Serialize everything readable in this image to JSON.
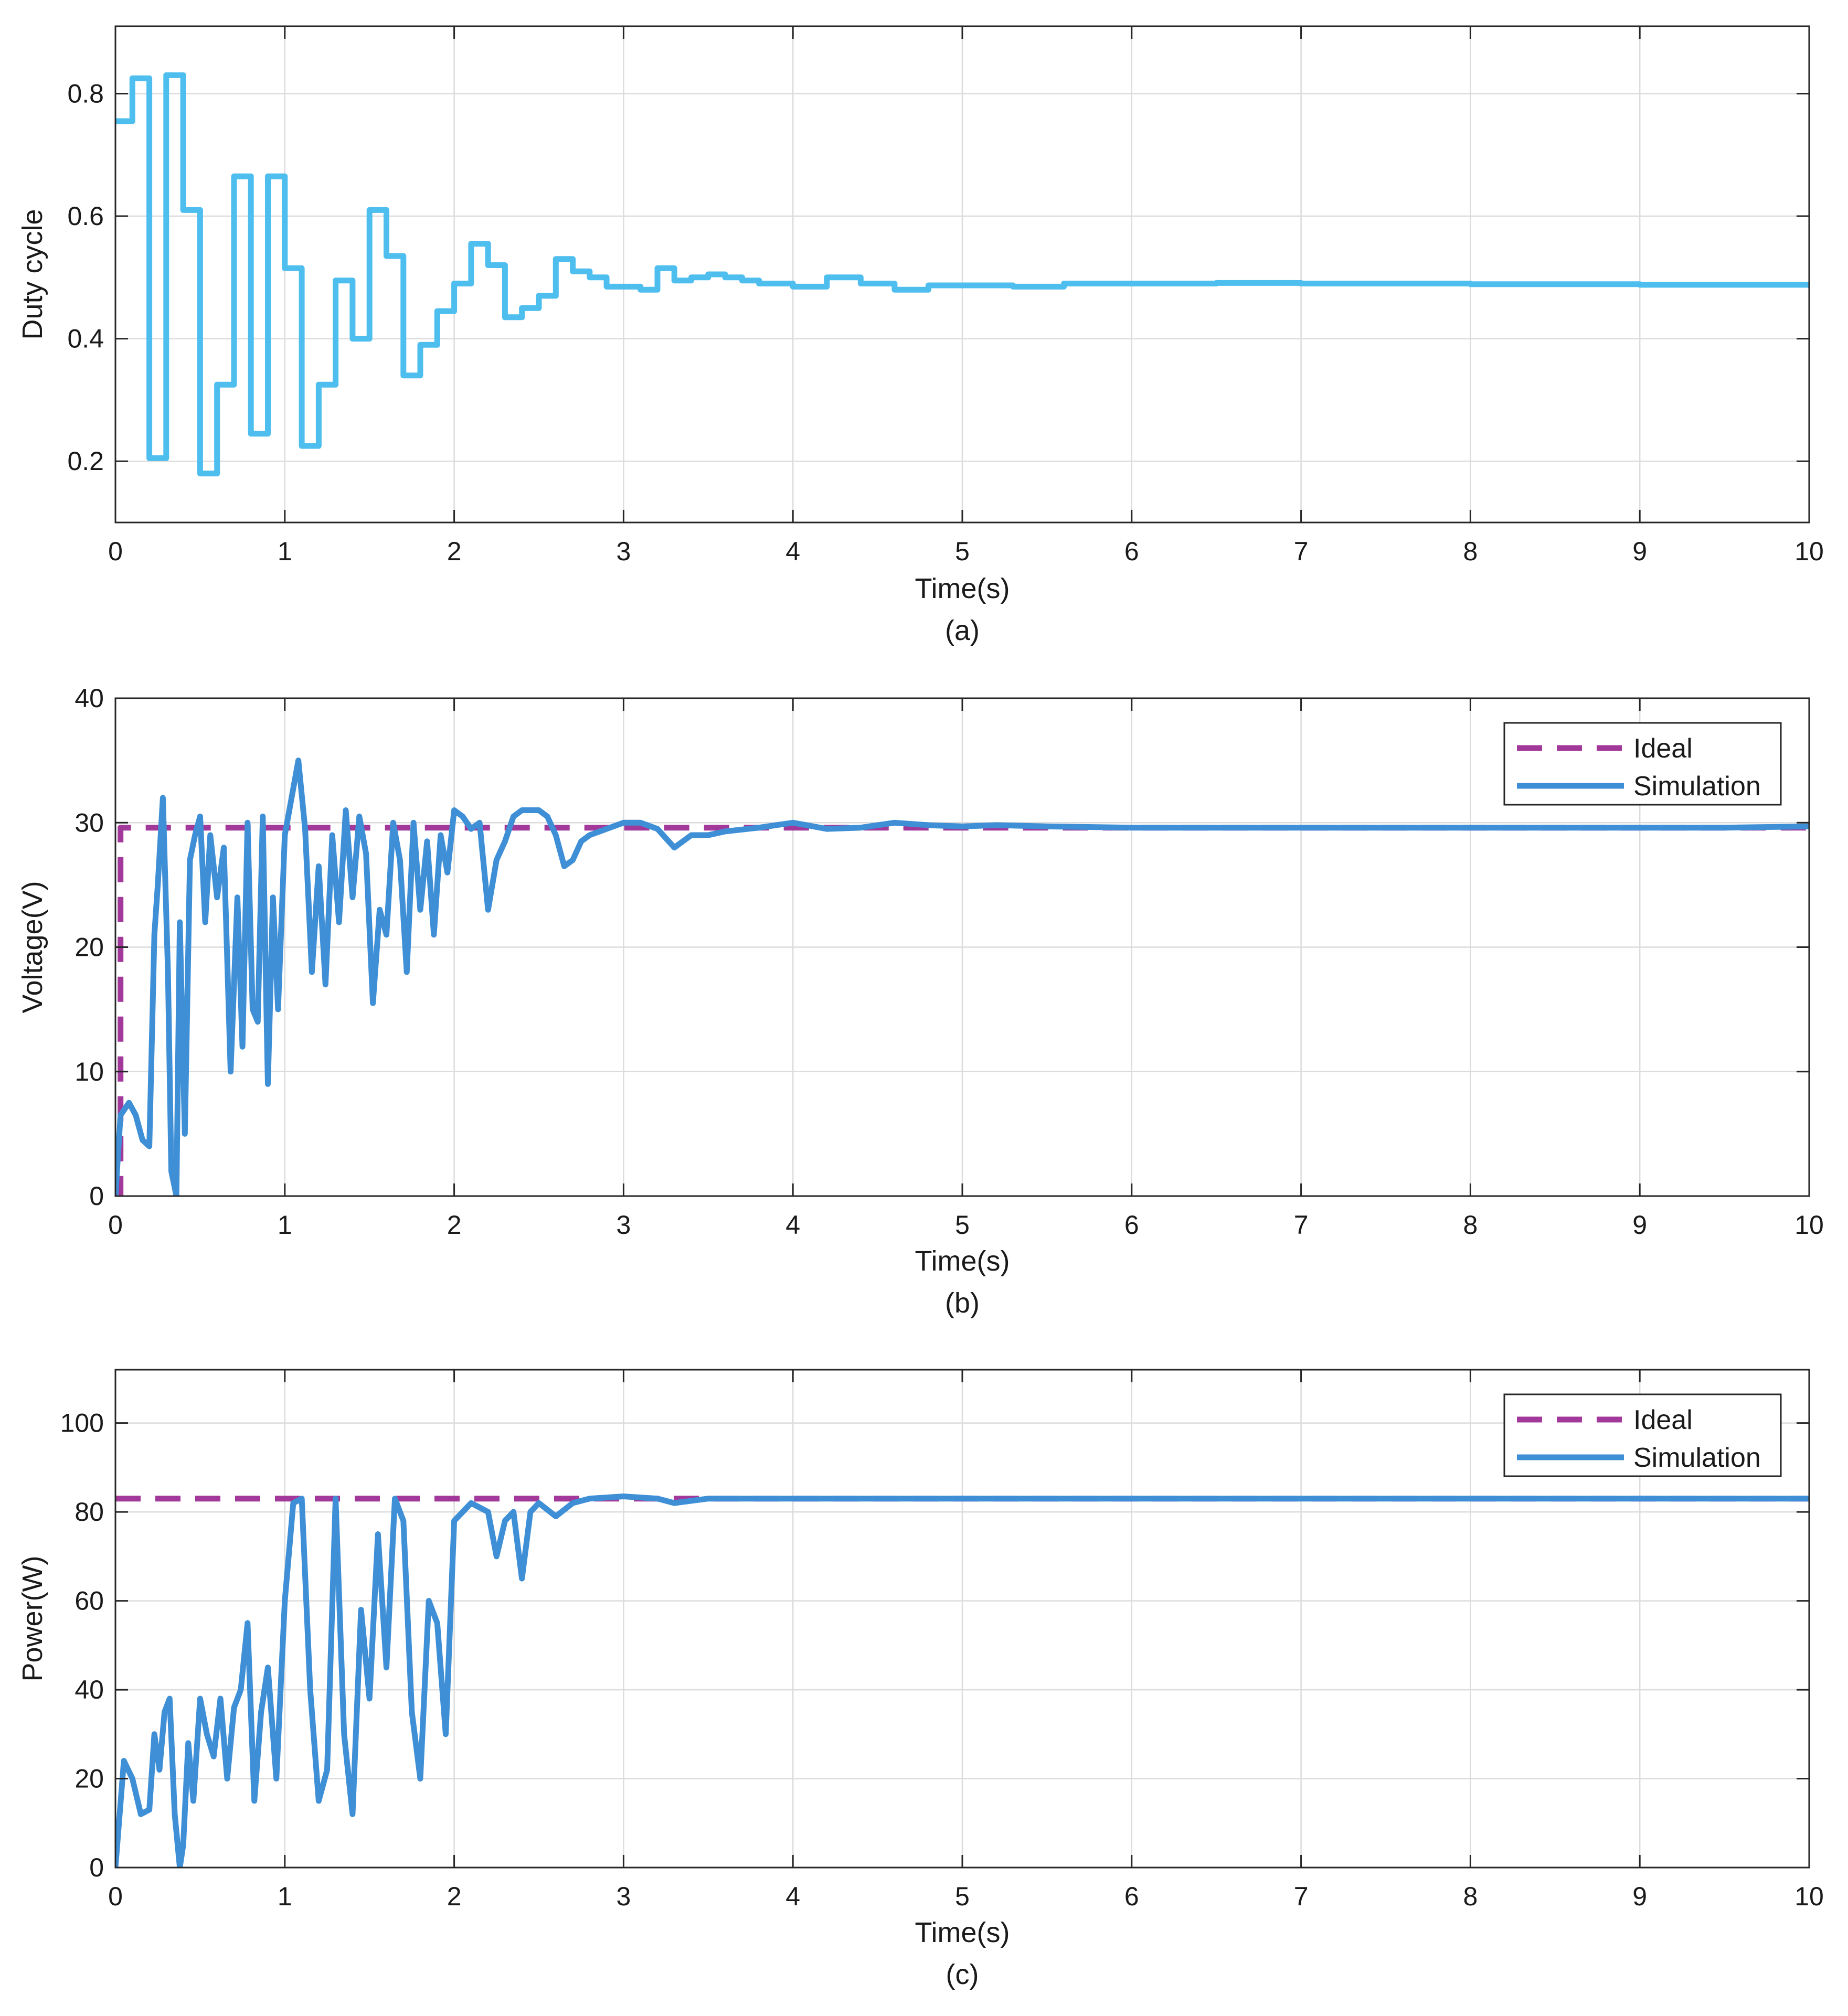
{
  "chart_data": [
    {
      "type": "line",
      "xlabel": "Time(s)",
      "ylabel": "Duty cycle",
      "caption": "(a)",
      "xlim": [
        0,
        10
      ],
      "ylim": [
        0.1,
        0.91
      ],
      "xticks": [
        0,
        1,
        2,
        3,
        4,
        5,
        6,
        7,
        8,
        9,
        10
      ],
      "yticks": [
        0.2,
        0.4,
        0.6,
        0.8
      ],
      "ytick_labels": [
        "0.2",
        "0.4",
        "0.6",
        "0.8"
      ],
      "grid": true,
      "legend": null,
      "series": [
        {
          "name": "Duty cycle",
          "color": "#4DBEEE",
          "step": true,
          "x": [
            0,
            0.1,
            0.2,
            0.3,
            0.4,
            0.5,
            0.6,
            0.7,
            0.8,
            0.9,
            1.0,
            1.1,
            1.2,
            1.3,
            1.4,
            1.5,
            1.6,
            1.7,
            1.8,
            1.9,
            2.0,
            2.1,
            2.2,
            2.3,
            2.4,
            2.5,
            2.6,
            2.7,
            2.8,
            2.9,
            3.0,
            3.1,
            3.2,
            3.3,
            3.4,
            3.5,
            3.6,
            3.7,
            3.8,
            3.9,
            4.0,
            4.2,
            4.4,
            4.6,
            4.8,
            5.0,
            5.3,
            5.6,
            6.0,
            6.5,
            7.0,
            7.5,
            8.0,
            8.5,
            9.0,
            9.5,
            10.0
          ],
          "y": [
            0.755,
            0.825,
            0.205,
            0.83,
            0.61,
            0.18,
            0.325,
            0.665,
            0.245,
            0.665,
            0.515,
            0.225,
            0.325,
            0.495,
            0.4,
            0.61,
            0.535,
            0.34,
            0.39,
            0.445,
            0.49,
            0.555,
            0.52,
            0.435,
            0.45,
            0.47,
            0.53,
            0.51,
            0.5,
            0.485,
            0.485,
            0.48,
            0.515,
            0.495,
            0.5,
            0.505,
            0.5,
            0.495,
            0.49,
            0.49,
            0.485,
            0.5,
            0.49,
            0.48,
            0.487,
            0.487,
            0.485,
            0.49,
            0.49,
            0.491,
            0.49,
            0.49,
            0.489,
            0.489,
            0.488,
            0.488,
            0.487
          ]
        }
      ]
    },
    {
      "type": "line",
      "xlabel": "Time(s)",
      "ylabel": "Voltage(V)",
      "caption": "(b)",
      "xlim": [
        0,
        10
      ],
      "ylim": [
        0,
        40
      ],
      "xticks": [
        0,
        1,
        2,
        3,
        4,
        5,
        6,
        7,
        8,
        9,
        10
      ],
      "yticks": [
        0,
        10,
        20,
        30,
        40
      ],
      "ytick_labels": [
        "0",
        "10",
        "20",
        "30",
        "40"
      ],
      "grid": true,
      "legend": "top-right",
      "series": [
        {
          "name": "Ideal",
          "color": "#A2399A",
          "dashed": true,
          "x": [
            0,
            0.03,
            0.03,
            10
          ],
          "y": [
            0,
            0,
            29.6,
            29.6
          ]
        },
        {
          "name": "Simulation",
          "color": "#3E8FD6",
          "x": [
            0,
            0.03,
            0.08,
            0.12,
            0.16,
            0.2,
            0.23,
            0.25,
            0.28,
            0.31,
            0.33,
            0.36,
            0.38,
            0.41,
            0.44,
            0.47,
            0.5,
            0.53,
            0.56,
            0.6,
            0.64,
            0.68,
            0.72,
            0.75,
            0.78,
            0.81,
            0.84,
            0.87,
            0.9,
            0.93,
            0.96,
            1.0,
            1.04,
            1.08,
            1.12,
            1.16,
            1.2,
            1.24,
            1.28,
            1.32,
            1.36,
            1.4,
            1.44,
            1.48,
            1.52,
            1.56,
            1.6,
            1.64,
            1.68,
            1.72,
            1.76,
            1.8,
            1.84,
            1.88,
            1.92,
            1.96,
            2.0,
            2.05,
            2.1,
            2.15,
            2.2,
            2.25,
            2.3,
            2.35,
            2.4,
            2.45,
            2.5,
            2.55,
            2.6,
            2.65,
            2.7,
            2.75,
            2.8,
            2.9,
            3.0,
            3.1,
            3.2,
            3.3,
            3.4,
            3.5,
            3.6,
            3.8,
            4.0,
            4.2,
            4.4,
            4.6,
            4.8,
            5.0,
            5.2,
            5.5,
            6.0,
            6.5,
            7.0,
            7.5,
            8.0,
            8.5,
            9.0,
            9.5,
            10.0
          ],
          "y": [
            0,
            6.5,
            7.5,
            6.5,
            4.5,
            4.0,
            21.0,
            25.0,
            32.0,
            18.0,
            2.0,
            0.0,
            22.0,
            5.0,
            27.0,
            29.0,
            30.5,
            22.0,
            29.0,
            24.0,
            28.0,
            10.0,
            24.0,
            12.0,
            30.0,
            15.0,
            14.0,
            30.5,
            9.0,
            24.0,
            15.0,
            29.0,
            32.0,
            35.0,
            29.5,
            18.0,
            26.5,
            17.0,
            29.0,
            22.0,
            31.0,
            24.0,
            30.5,
            27.5,
            15.5,
            23.0,
            21.0,
            30.0,
            27.0,
            18.0,
            30.0,
            23.0,
            28.5,
            21.0,
            29.0,
            26.0,
            31.0,
            30.5,
            29.5,
            30.0,
            23.0,
            27.0,
            28.5,
            30.5,
            31.0,
            31.0,
            31.0,
            30.5,
            29.0,
            26.5,
            27.0,
            28.5,
            29.0,
            29.5,
            30.0,
            30.0,
            29.5,
            28.0,
            29.0,
            29.0,
            29.3,
            29.6,
            30.0,
            29.5,
            29.6,
            30.0,
            29.8,
            29.7,
            29.8,
            29.7,
            29.6,
            29.6,
            29.6,
            29.6,
            29.6,
            29.6,
            29.6,
            29.6,
            29.7
          ]
        }
      ]
    },
    {
      "type": "line",
      "xlabel": "Time(s)",
      "ylabel": "Power(W)",
      "caption": "(c)",
      "xlim": [
        0,
        10
      ],
      "ylim": [
        0,
        112
      ],
      "xticks": [
        0,
        1,
        2,
        3,
        4,
        5,
        6,
        7,
        8,
        9,
        10
      ],
      "yticks": [
        0,
        20,
        40,
        60,
        80,
        100
      ],
      "ytick_labels": [
        "0",
        "20",
        "40",
        "60",
        "80",
        "100"
      ],
      "grid": true,
      "legend": "top-right",
      "series": [
        {
          "name": "Ideal",
          "color": "#A2399A",
          "dashed": true,
          "x": [
            0,
            10
          ],
          "y": [
            83,
            83
          ]
        },
        {
          "name": "Simulation",
          "color": "#3E8FD6",
          "x": [
            0,
            0.05,
            0.1,
            0.15,
            0.2,
            0.23,
            0.26,
            0.29,
            0.32,
            0.35,
            0.38,
            0.4,
            0.43,
            0.46,
            0.5,
            0.54,
            0.58,
            0.62,
            0.66,
            0.7,
            0.74,
            0.78,
            0.82,
            0.86,
            0.9,
            0.95,
            1.0,
            1.05,
            1.1,
            1.15,
            1.2,
            1.25,
            1.3,
            1.35,
            1.4,
            1.45,
            1.5,
            1.55,
            1.6,
            1.65,
            1.7,
            1.75,
            1.8,
            1.85,
            1.9,
            1.95,
            2.0,
            2.1,
            2.2,
            2.25,
            2.3,
            2.35,
            2.4,
            2.45,
            2.5,
            2.6,
            2.7,
            2.8,
            3.0,
            3.2,
            3.3,
            3.5,
            4.0,
            4.5,
            5.0,
            6.0,
            7.0,
            8.0,
            9.0,
            10.0
          ],
          "y": [
            0,
            24,
            20,
            12,
            13,
            30,
            22,
            35,
            38,
            12,
            0,
            5,
            28,
            15,
            38,
            30,
            25,
            38,
            20,
            36,
            40,
            55,
            15,
            35,
            45,
            20,
            60,
            82,
            83,
            40,
            15,
            22,
            83,
            30,
            12,
            58,
            38,
            75,
            45,
            83,
            78,
            35,
            20,
            60,
            55,
            30,
            78,
            82,
            80,
            70,
            78,
            80,
            65,
            80,
            82,
            79,
            82,
            83,
            83.5,
            83,
            82,
            83,
            83,
            83,
            83,
            83,
            83,
            83,
            83,
            83
          ]
        }
      ]
    }
  ]
}
